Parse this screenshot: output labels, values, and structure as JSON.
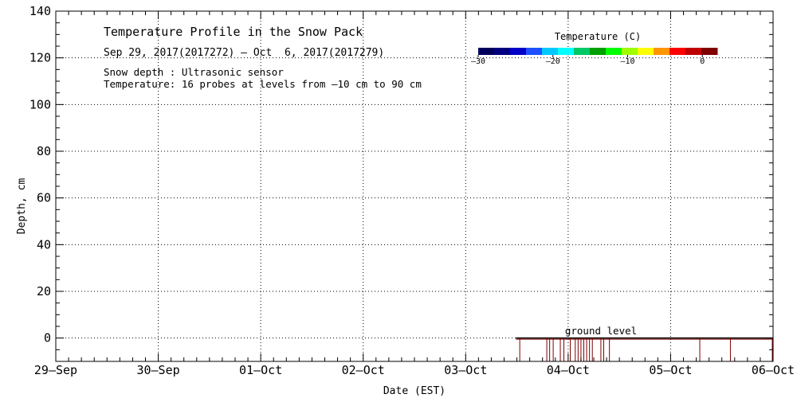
{
  "chart_data": {
    "type": "heatmap",
    "title": "Temperature Profile in the Snow Pack",
    "subtitle": "Sep 29, 2017(2017272) – Oct  6, 2017(2017279)",
    "notes": [
      "Snow depth : Ultrasonic sensor",
      "Temperature: 16 probes at levels from –10 cm to 90 cm"
    ],
    "xlabel": "Date (EST)",
    "ylabel": "Depth, cm",
    "x_ticks": [
      "29–Sep",
      "30–Sep",
      "01–Oct",
      "02–Oct",
      "03–Oct",
      "04–Oct",
      "05–Oct",
      "06–Oct"
    ],
    "xlim": [
      "2017-09-29",
      "2017-10-06"
    ],
    "y_ticks": [
      "0",
      "20",
      "40",
      "60",
      "80",
      "100",
      "120",
      "140"
    ],
    "ylim": [
      -10,
      140
    ],
    "grid": true,
    "colorbar": {
      "label": "Temperature (C)",
      "range": [
        -30,
        2
      ],
      "ticks": [
        "–30",
        "–20",
        "–10",
        "0"
      ],
      "colors": [
        "#00005a",
        "#000080",
        "#0000c8",
        "#1e50ff",
        "#00c8ff",
        "#00ffff",
        "#00c864",
        "#00a000",
        "#00ff00",
        "#a0ff00",
        "#ffff00",
        "#ff9600",
        "#ff0000",
        "#c00000",
        "#800000"
      ]
    },
    "ground_level": {
      "label": "ground level",
      "start": "2017-10-03T12:30",
      "end": "2017-10-06T00:00",
      "depth": 0,
      "color": "#800000"
    },
    "snow_depth_spikes": [
      "2017-10-03T12:40",
      "2017-10-03T19:00",
      "2017-10-03T19:40",
      "2017-10-03T20:30",
      "2017-10-03T22:10",
      "2017-10-03T23:00",
      "2017-10-04T00:30",
      "2017-10-04T01:40",
      "2017-10-04T02:20",
      "2017-10-04T03:00",
      "2017-10-04T03:40",
      "2017-10-04T04:20",
      "2017-10-04T05:00",
      "2017-10-04T05:40",
      "2017-10-04T07:40",
      "2017-10-04T08:20",
      "2017-10-04T09:40",
      "2017-10-05T06:50",
      "2017-10-05T14:00"
    ],
    "spike_depth": -10
  }
}
